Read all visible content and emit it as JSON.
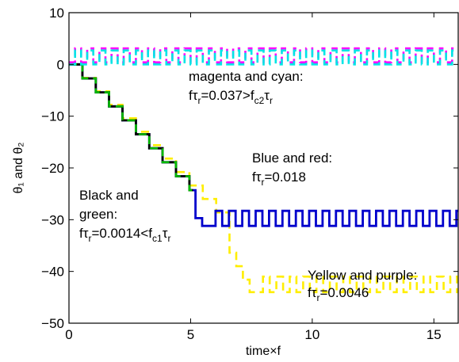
{
  "chart_data": {
    "type": "line",
    "xlabel": "time×f",
    "ylabel": "θ₁ and θ₂",
    "xlim": [
      0,
      16
    ],
    "ylim": [
      -50,
      10
    ],
    "x_ticks": [
      0,
      5,
      10,
      15
    ],
    "y_ticks": [
      10,
      0,
      -10,
      -20,
      -30,
      -40,
      -50
    ],
    "x_tick_labels": [
      "0",
      "5",
      "10",
      "15"
    ],
    "y_tick_labels": [
      "10",
      "0",
      "−10",
      "−20",
      "−30",
      "−40",
      "−50"
    ],
    "grid": false,
    "legend": "none",
    "series": [
      {
        "color": "#ff00ff",
        "dash": true,
        "pattern": "square-oscillation",
        "x_start": 0,
        "x_end": 16,
        "low": 0.4,
        "high": 3.1,
        "period": 0.5
      },
      {
        "color": "#00e5e5",
        "dash": true,
        "pattern": "square-oscillation",
        "x_start": 0,
        "x_end": 16,
        "low": 0.0,
        "high": 2.7,
        "period": 0.5
      },
      {
        "color": "#ffee00",
        "dash": true,
        "pattern": "staircase-then-oscillation",
        "x_start": 0,
        "x_end": 16,
        "step_period": 0.55,
        "step_drop": 2.6,
        "final_low": -44,
        "final_high": -41,
        "osc_start": 6.6
      },
      {
        "color": "#0000cc",
        "dash": false,
        "pattern": "staircase-then-oscillation",
        "x_start": 0,
        "x_end": 16,
        "step_period": 0.55,
        "step_drop": 2.7,
        "final_low": -31.2,
        "final_high": -28.3,
        "osc_start": 5.2
      },
      {
        "color": "#000000",
        "dash": false,
        "pattern": "staircase",
        "x_start": 0,
        "x_end": 5.1,
        "step_period": 0.55,
        "step_drop": 2.7
      },
      {
        "color": "#00bb00",
        "dash": true,
        "pattern": "staircase",
        "x_start": 0,
        "x_end": 5.1,
        "step_period": 0.55,
        "step_drop": 2.7
      }
    ],
    "annotations": {
      "a1_line1": "magenta and cyan:",
      "a1_f": "fτ",
      "a1_sub1": "r",
      "a1_mid": "=0.037>f",
      "a1_sub2": "c2",
      "a1_tau": "τ",
      "a1_sub3": "r",
      "a2_line1": "Blue and red:",
      "a2_f": "fτ",
      "a2_sub": "r",
      "a2_val": "=0.018",
      "a3_line1": "Black and",
      "a3_line2": "green:",
      "a3_f": "fτ",
      "a3_sub1": "r",
      "a3_mid": "=0.0014<f",
      "a3_sub2": "c1",
      "a3_tau": "τ",
      "a3_sub3": "r",
      "a4_line1": "Yellow and purple:",
      "a4_f": "fτ",
      "a4_sub": "r",
      "a4_val": "=0.0046"
    }
  }
}
